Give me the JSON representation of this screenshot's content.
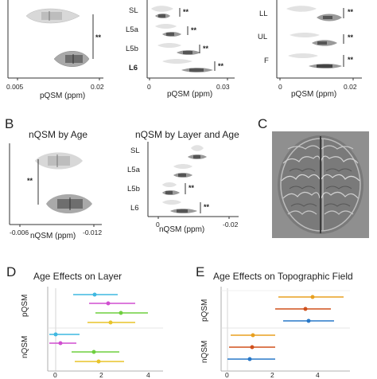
{
  "panelA": {
    "left": {
      "xlabel": "pQSM (ppm)",
      "ticks": [
        "0.005",
        "0.02"
      ],
      "sig": "**"
    },
    "mid": {
      "xlabel": "pQSM (ppm)",
      "ticks": [
        "0",
        "0.03"
      ],
      "categories": [
        "SL",
        "L5a",
        "L5b",
        "L6"
      ],
      "sig": [
        "**",
        "**",
        "**",
        "**"
      ]
    },
    "right": {
      "xlabel": "pQSM (ppm)",
      "ticks": [
        "0",
        "0.02"
      ],
      "categories": [
        "LL",
        "UL",
        "F"
      ],
      "sig": [
        "**",
        "**",
        "**"
      ]
    }
  },
  "panelB": {
    "letter": "B",
    "left": {
      "title": "nQSM by Age",
      "xlabel": "nQSM (ppm)",
      "ticks": [
        "-0.006",
        "-0.012"
      ],
      "sig": "**"
    },
    "right": {
      "title": "nQSM by Layer and Age",
      "xlabel": "nQSM (ppm)",
      "ticks": [
        "0",
        "-0.02"
      ],
      "categories": [
        "SL",
        "L5a",
        "L5b",
        "L6"
      ],
      "sig": [
        "**",
        "**"
      ]
    }
  },
  "panelC": {
    "letter": "C"
  },
  "panelD": {
    "letter": "D",
    "title": "Age Effects on Layer",
    "ylabels": [
      "pQSM",
      "nQSM"
    ],
    "ticks": [
      "0",
      "2",
      "4"
    ]
  },
  "panelE": {
    "letter": "E",
    "title": "Age Effects on Topographic Field",
    "ylabels": [
      "pQSM",
      "nQSM"
    ],
    "ticks": [
      "0",
      "2",
      "4"
    ]
  },
  "colors": {
    "cyan": "#3fb8e0",
    "magenta": "#d04fd0",
    "green": "#6fcf3f",
    "yellow": "#e8c42a",
    "orange": "#e8a020",
    "red": "#d0501c",
    "blue": "#2878c8"
  }
}
